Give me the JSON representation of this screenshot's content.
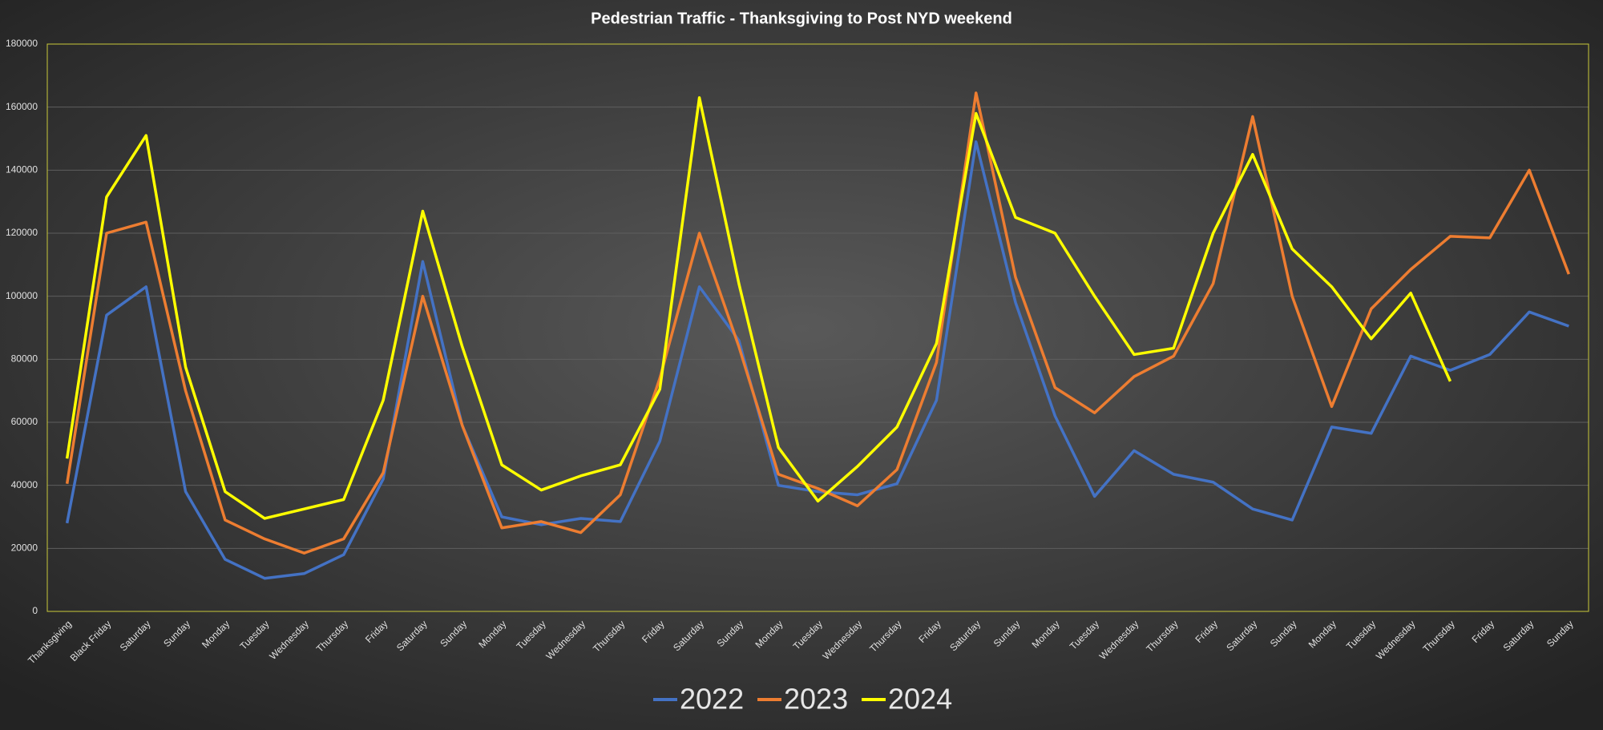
{
  "chart_data": {
    "type": "line",
    "title": "Pedestrian Traffic - Thanksgiving to Post NYD weekend",
    "categories": [
      "Thanksgiving",
      "Black Friday",
      "Saturday",
      "Sunday",
      "Monday",
      "Tuesday",
      "Wednesday",
      "Thursday",
      "Friday",
      "Saturday",
      "Sunday",
      "Monday",
      "Tuesday",
      "Wednesday",
      "Thursday",
      "Friday",
      "Saturday",
      "Sunday",
      "Monday",
      "Tuesday",
      "Wednesday",
      "Thursday",
      "Friday",
      "Saturday",
      "Sunday",
      "Monday",
      "Tuesday",
      "Wednesday",
      "Thursday",
      "Friday",
      "Saturday",
      "Sunday",
      "Monday",
      "Tuesday",
      "Wednesday",
      "Thursday",
      "Friday",
      "Saturday",
      "Sunday"
    ],
    "series": [
      {
        "name": "2022",
        "color": "#4472c4",
        "values": [
          28000,
          94000,
          103000,
          38000,
          16500,
          10500,
          12000,
          18000,
          42000,
          111000,
          59000,
          30000,
          27500,
          29500,
          28500,
          54000,
          103000,
          86000,
          40000,
          38000,
          37000,
          40500,
          67000,
          149000,
          98000,
          62000,
          36500,
          51000,
          43500,
          41000,
          32500,
          29000,
          58500,
          56500,
          81000,
          76500,
          81500,
          95000,
          90500
        ]
      },
      {
        "name": "2023",
        "color": "#ed7d31",
        "values": [
          40500,
          120000,
          123500,
          70000,
          29000,
          23000,
          18500,
          23000,
          44000,
          100000,
          59000,
          26500,
          28500,
          25000,
          37000,
          74000,
          120000,
          84000,
          43500,
          39000,
          33500,
          45000,
          79000,
          164500,
          106000,
          71000,
          63000,
          74500,
          81000,
          104000,
          157000,
          100000,
          65000,
          96000,
          108500,
          119000,
          118500,
          140000,
          107000
        ]
      },
      {
        "name": "2024",
        "color": "#ffff00",
        "values": [
          48500,
          131500,
          151000,
          77500,
          38000,
          29500,
          32500,
          35500,
          67000,
          127000,
          84000,
          46500,
          38500,
          43000,
          46500,
          70500,
          163000,
          104000,
          52000,
          35000,
          46000,
          58500,
          85000,
          158000,
          125000,
          120000,
          100000,
          81500,
          83500,
          120000,
          145000,
          115000,
          103000,
          86500,
          101000,
          73000,
          null,
          null,
          null
        ]
      }
    ],
    "ylim": [
      0,
      180000
    ],
    "yticks": [
      0,
      20000,
      40000,
      60000,
      80000,
      100000,
      120000,
      140000,
      160000,
      180000
    ],
    "grid": true
  }
}
